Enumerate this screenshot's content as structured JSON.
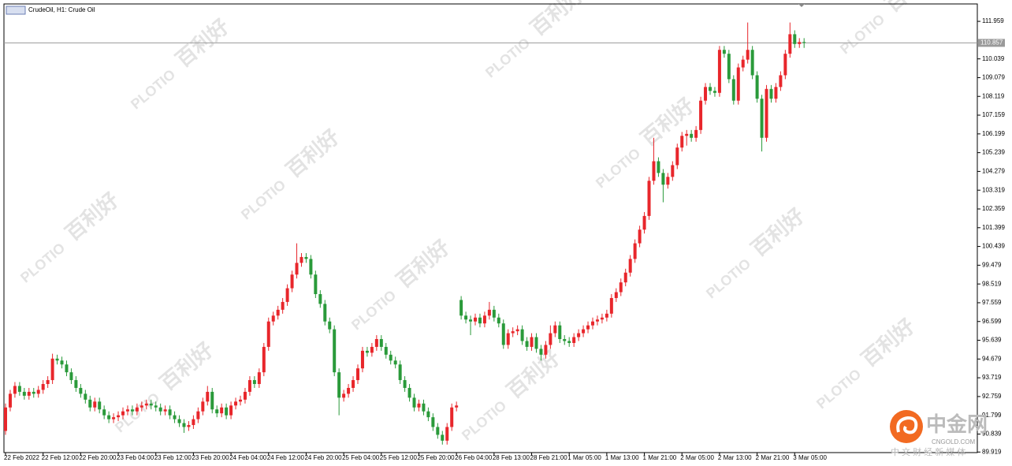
{
  "chart_data": {
    "type": "candlestick",
    "title": "CrudeOil, H1:  Crude Oil",
    "up_color": "#e8262b",
    "down_color": "#2a9a3a",
    "current_price": 110.857,
    "watermark": {
      "brand": "PLOTIO",
      "chinese": "百利好"
    },
    "logo": {
      "name": "中金网",
      "site": "CNGOLD.COM",
      "slogan": "中 文 财 经 新 媒 体"
    },
    "ylim": [
      89.89,
      112.85
    ],
    "yticks": [
      111.959,
      110.039,
      109.079,
      108.119,
      107.159,
      106.199,
      105.239,
      104.279,
      103.319,
      102.359,
      101.399,
      100.439,
      99.479,
      98.519,
      97.559,
      96.599,
      95.639,
      94.679,
      93.719,
      92.759,
      91.799,
      90.839,
      89.919
    ],
    "categories": [
      "22 Feb 2022",
      null,
      null,
      null,
      null,
      null,
      null,
      null,
      "22 Feb 12:00",
      null,
      null,
      null,
      null,
      null,
      null,
      null,
      "22 Feb 20:00",
      null,
      null,
      null,
      null,
      null,
      null,
      null,
      "23 Feb 04:00",
      null,
      null,
      null,
      null,
      null,
      null,
      null,
      "23 Feb 12:00",
      null,
      null,
      null,
      null,
      null,
      null,
      null,
      "23 Feb 20:00",
      null,
      null,
      null,
      null,
      null,
      null,
      null,
      "24 Feb 04:00",
      null,
      null,
      null,
      null,
      null,
      null,
      null,
      "24 Feb 12:00",
      null,
      null,
      null,
      null,
      null,
      null,
      null,
      "24 Feb 20:00",
      null,
      null,
      null,
      null,
      null,
      null,
      null,
      "25 Feb 04:00",
      null,
      null,
      null,
      null,
      null,
      null,
      null,
      "25 Feb 12:00",
      null,
      null,
      null,
      null,
      null,
      null,
      null,
      "25 Feb 20:00",
      null,
      null,
      null,
      null,
      null,
      null,
      null,
      "26 Feb 04:00",
      null,
      null,
      null,
      null,
      null,
      null,
      null,
      "28 Feb 13:00",
      null,
      null,
      null,
      null,
      null,
      null,
      null,
      "28 Feb 21:00",
      null,
      null,
      null,
      null,
      null,
      null,
      null,
      "1 Mar 05:00",
      null,
      null,
      null,
      null,
      null,
      null,
      null,
      "1 Mar 13:00",
      null,
      null,
      null,
      null,
      null,
      null,
      null,
      "1 Mar 21:00",
      null,
      null,
      null,
      null,
      null,
      null,
      null,
      "2 Mar 05:00",
      null,
      null,
      null,
      null,
      null,
      null,
      null,
      "2 Mar 13:00",
      null,
      null,
      null,
      null,
      null,
      null,
      null,
      "2 Mar 21:00",
      null,
      null,
      null,
      null,
      null,
      null,
      null,
      "3 Mar 05:00",
      null,
      null
    ],
    "open": [
      91.0,
      92.2,
      92.9,
      93.3,
      93.0,
      92.8,
      93.0,
      92.9,
      93.1,
      93.4,
      93.6,
      94.7,
      94.6,
      94.4,
      94.0,
      93.6,
      93.2,
      92.9,
      92.6,
      92.2,
      92.5,
      92.1,
      91.8,
      91.6,
      91.7,
      91.8,
      92.0,
      92.1,
      92.0,
      92.2,
      92.3,
      92.4,
      92.3,
      92.2,
      92.0,
      92.1,
      91.8,
      91.6,
      91.4,
      91.2,
      91.3,
      91.6,
      92.0,
      92.5,
      93.0,
      92.1,
      91.9,
      92.2,
      91.8,
      92.3,
      92.5,
      92.6,
      93.0,
      93.6,
      93.4,
      94.0,
      95.3,
      96.6,
      96.9,
      97.2,
      97.6,
      98.3,
      99.0,
      99.6,
      99.9,
      99.8,
      99.0,
      98.0,
      97.5,
      96.6,
      96.2,
      94.0,
      92.7,
      92.9,
      93.2,
      93.6,
      94.2,
      95.1,
      95.0,
      95.3,
      95.7,
      95.3,
      94.9,
      94.6,
      94.4,
      93.6,
      93.2,
      92.7,
      92.2,
      92.4,
      92.0,
      91.7,
      91.2,
      90.8,
      90.5,
      91.2,
      92.2,
      97.7,
      96.9,
      96.7,
      96.6,
      96.8,
      96.5,
      96.9,
      97.2,
      96.8,
      96.5,
      95.4,
      96.0,
      96.1,
      96.2,
      95.6,
      95.3,
      95.8,
      95.2,
      94.9,
      95.4,
      96.0,
      96.4,
      95.7,
      95.6,
      95.5,
      95.8,
      96.0,
      96.2,
      96.4,
      96.6,
      96.7,
      96.8,
      97.0,
      97.8,
      98.1,
      98.6,
      99.1,
      99.8,
      100.6,
      101.3,
      102.0,
      103.8,
      104.8,
      104.2,
      103.6,
      104.0,
      104.6,
      105.5,
      106.1,
      106.2,
      106.0,
      106.4,
      107.9,
      108.6,
      108.4,
      108.3,
      110.5,
      110.3,
      109.0,
      107.9,
      109.6,
      110.0,
      110.5,
      109.2,
      108.0,
      106.0,
      108.5,
      108.0,
      108.6,
      109.2,
      110.3,
      111.3,
      110.8,
      110.9
    ],
    "high": [
      92.4,
      93.1,
      93.5,
      93.5,
      93.2,
      93.2,
      93.2,
      93.3,
      93.6,
      93.8,
      94.95,
      94.9,
      94.8,
      94.6,
      94.2,
      93.8,
      93.4,
      93.1,
      92.8,
      92.7,
      92.7,
      92.3,
      92.0,
      91.9,
      92.0,
      92.2,
      92.3,
      92.3,
      92.4,
      92.5,
      92.6,
      92.6,
      92.5,
      92.4,
      92.3,
      92.3,
      92.0,
      91.8,
      91.6,
      91.5,
      91.8,
      92.2,
      92.7,
      93.3,
      93.2,
      92.3,
      92.4,
      92.4,
      92.5,
      92.7,
      92.8,
      93.2,
      93.8,
      93.8,
      94.2,
      95.5,
      96.8,
      97.1,
      97.4,
      97.8,
      98.5,
      99.2,
      100.6,
      100.1,
      100.1,
      100.0,
      99.2,
      98.2,
      97.7,
      96.8,
      96.4,
      94.2,
      93.1,
      93.4,
      93.8,
      94.4,
      95.3,
      95.3,
      95.5,
      95.9,
      95.9,
      95.5,
      95.1,
      94.8,
      94.6,
      93.8,
      93.4,
      92.9,
      92.6,
      92.6,
      92.2,
      91.9,
      91.4,
      91.0,
      91.4,
      92.4,
      92.5,
      97.9,
      97.1,
      96.9,
      97.0,
      97.0,
      97.1,
      97.6,
      97.4,
      97.0,
      96.7,
      96.2,
      96.3,
      96.4,
      96.4,
      95.8,
      96.0,
      96.0,
      95.4,
      95.6,
      96.4,
      96.6,
      96.6,
      95.9,
      95.8,
      96.0,
      96.2,
      96.4,
      96.6,
      96.8,
      96.9,
      97.0,
      97.2,
      98.0,
      98.3,
      98.8,
      99.3,
      100.0,
      100.8,
      101.5,
      102.2,
      104.0,
      106.0,
      105.0,
      104.4,
      104.2,
      104.8,
      105.7,
      106.3,
      106.4,
      106.4,
      106.6,
      108.1,
      108.8,
      108.8,
      108.6,
      110.7,
      110.7,
      110.5,
      109.2,
      109.8,
      110.2,
      111.9,
      110.7,
      109.4,
      108.2,
      108.7,
      108.7,
      108.8,
      109.4,
      110.5,
      111.9,
      111.5,
      111.1,
      111.1
    ],
    "low": [
      90.8,
      92.0,
      92.7,
      92.8,
      92.6,
      92.6,
      92.7,
      92.7,
      92.9,
      93.2,
      93.4,
      94.4,
      94.2,
      93.8,
      93.4,
      93.0,
      92.7,
      92.4,
      92.0,
      92.0,
      91.9,
      91.6,
      91.4,
      91.4,
      91.5,
      91.6,
      91.8,
      91.8,
      91.8,
      92.0,
      92.1,
      92.1,
      92.0,
      91.8,
      91.8,
      91.6,
      91.4,
      91.2,
      90.9,
      91.0,
      91.1,
      91.4,
      91.8,
      92.3,
      91.9,
      91.7,
      91.7,
      91.6,
      91.6,
      92.1,
      92.3,
      92.4,
      92.8,
      93.2,
      93.2,
      93.8,
      95.1,
      96.4,
      96.7,
      97.0,
      97.4,
      98.1,
      98.8,
      99.4,
      99.6,
      98.8,
      97.8,
      97.3,
      96.4,
      96.0,
      93.8,
      91.8,
      92.5,
      92.7,
      93.0,
      93.4,
      94.0,
      94.8,
      94.8,
      95.1,
      95.1,
      94.7,
      94.4,
      94.2,
      93.4,
      93.0,
      92.5,
      92.0,
      92.0,
      91.8,
      91.5,
      91.0,
      90.6,
      90.3,
      90.3,
      91.0,
      92.0,
      96.7,
      96.5,
      95.9,
      96.4,
      96.3,
      96.3,
      96.7,
      96.6,
      96.3,
      95.2,
      95.2,
      95.8,
      95.9,
      95.4,
      95.1,
      95.1,
      95.0,
      94.6,
      94.7,
      95.2,
      95.8,
      95.5,
      95.4,
      95.3,
      95.3,
      95.6,
      95.8,
      96.0,
      96.2,
      96.4,
      96.5,
      96.6,
      96.8,
      97.6,
      97.9,
      98.4,
      98.9,
      99.6,
      100.4,
      101.1,
      101.8,
      103.6,
      104.0,
      102.7,
      103.4,
      103.8,
      104.4,
      105.3,
      105.6,
      105.8,
      105.8,
      106.2,
      107.7,
      108.2,
      108.1,
      108.1,
      110.1,
      108.8,
      107.7,
      107.7,
      109.4,
      109.8,
      109.0,
      107.8,
      105.3,
      105.8,
      107.8,
      107.8,
      108.4,
      109.0,
      110.1,
      110.6,
      110.6,
      110.6
    ],
    "close": [
      92.2,
      92.9,
      93.3,
      93.0,
      92.8,
      93.0,
      92.9,
      93.1,
      93.4,
      93.6,
      94.7,
      94.6,
      94.4,
      94.0,
      93.6,
      93.2,
      92.9,
      92.6,
      92.2,
      92.5,
      92.1,
      91.8,
      91.6,
      91.7,
      91.8,
      92.0,
      92.1,
      92.0,
      92.2,
      92.3,
      92.4,
      92.3,
      92.2,
      92.0,
      92.1,
      91.8,
      91.6,
      91.4,
      91.2,
      91.3,
      91.6,
      92.0,
      92.5,
      93.0,
      92.1,
      91.9,
      92.2,
      91.8,
      92.3,
      92.5,
      92.6,
      93.0,
      93.6,
      93.4,
      94.0,
      95.3,
      96.6,
      96.9,
      97.2,
      97.6,
      98.3,
      99.0,
      99.6,
      99.9,
      99.8,
      99.0,
      98.0,
      97.5,
      96.6,
      96.2,
      94.0,
      92.7,
      92.9,
      93.2,
      93.6,
      94.2,
      95.1,
      95.0,
      95.3,
      95.7,
      95.3,
      94.9,
      94.6,
      94.4,
      93.6,
      93.2,
      92.7,
      92.2,
      92.4,
      92.0,
      91.7,
      91.2,
      90.8,
      90.5,
      91.2,
      92.2,
      92.3,
      96.9,
      96.7,
      96.6,
      96.8,
      96.5,
      96.9,
      97.2,
      96.8,
      96.5,
      95.4,
      96.0,
      96.1,
      96.2,
      95.6,
      95.3,
      95.8,
      95.2,
      94.9,
      95.4,
      96.0,
      96.4,
      95.7,
      95.6,
      95.5,
      95.8,
      96.0,
      96.2,
      96.4,
      96.6,
      96.7,
      96.8,
      97.0,
      97.8,
      98.1,
      98.6,
      99.1,
      99.8,
      100.6,
      101.3,
      102.0,
      103.8,
      104.8,
      104.2,
      103.6,
      104.0,
      104.6,
      105.5,
      106.1,
      106.2,
      106.0,
      106.4,
      107.9,
      108.6,
      108.4,
      108.3,
      110.5,
      110.3,
      109.0,
      107.9,
      109.6,
      110.0,
      110.5,
      109.2,
      108.0,
      106.0,
      108.5,
      108.0,
      108.6,
      109.2,
      110.3,
      111.3,
      110.8,
      110.9,
      110.857
    ]
  }
}
